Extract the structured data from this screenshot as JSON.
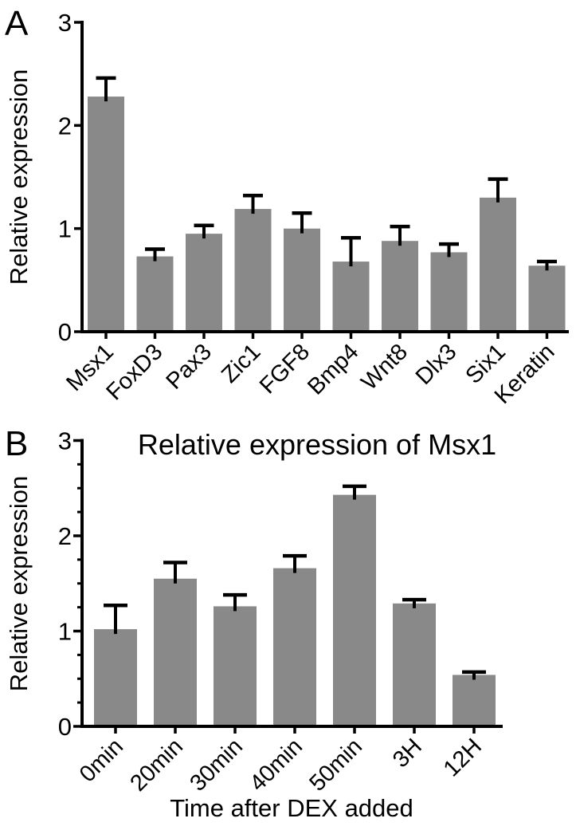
{
  "figure": {
    "background": "#ffffff",
    "bar_color": "#898989",
    "axis_color": "#000000",
    "text_color": "#000000"
  },
  "chart_data": [
    {
      "type": "bar",
      "panel_label": "A",
      "title": "",
      "xlabel": "",
      "ylabel": "Relative expression",
      "ylim": [
        0,
        3
      ],
      "yticks": [
        0,
        1,
        2,
        3
      ],
      "minor_tick_step": null,
      "grid": false,
      "legend": null,
      "error_bars": "upper",
      "categories": [
        "Msx1",
        "FoxD3",
        "Pax3",
        "Zic1",
        "FGF8",
        "Bmp4",
        "Wnt8",
        "Dlx3",
        "Six1",
        "Keratin"
      ],
      "values": [
        2.28,
        0.73,
        0.95,
        1.19,
        1.0,
        0.68,
        0.88,
        0.77,
        1.3,
        0.64
      ],
      "errors": [
        0.18,
        0.07,
        0.08,
        0.13,
        0.15,
        0.23,
        0.14,
        0.08,
        0.18,
        0.04
      ]
    },
    {
      "type": "bar",
      "panel_label": "B",
      "title": "Relative expression of Msx1",
      "xlabel": "Time after DEX added",
      "ylabel": "Relative expression",
      "ylim": [
        0,
        3
      ],
      "yticks": [
        0,
        1,
        2,
        3
      ],
      "minor_tick_step": 0.25,
      "grid": false,
      "legend": null,
      "error_bars": "upper",
      "categories": [
        "0min",
        "20min",
        "30min",
        "40min",
        "50min",
        "3H",
        "12H"
      ],
      "values": [
        1.02,
        1.55,
        1.26,
        1.66,
        2.43,
        1.29,
        0.54
      ],
      "errors": [
        0.25,
        0.17,
        0.12,
        0.13,
        0.09,
        0.04,
        0.03
      ]
    }
  ]
}
